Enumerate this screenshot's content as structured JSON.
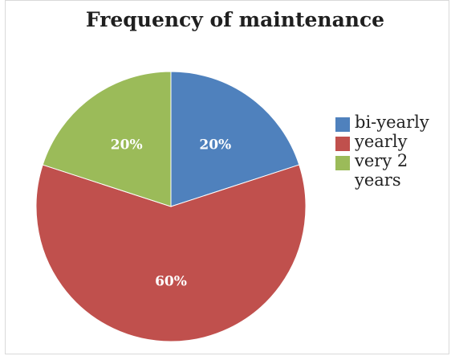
{
  "chart_data": {
    "type": "pie",
    "title": "Frequency of maintenance",
    "categories": [
      "bi-yearly",
      "yearly",
      "very 2 years"
    ],
    "values": [
      20,
      60,
      20
    ],
    "labels": [
      "20%",
      "60%",
      "20%"
    ],
    "colors": [
      "#4F81BD",
      "#C0504D",
      "#9BBB59"
    ],
    "legend_position": "right"
  }
}
